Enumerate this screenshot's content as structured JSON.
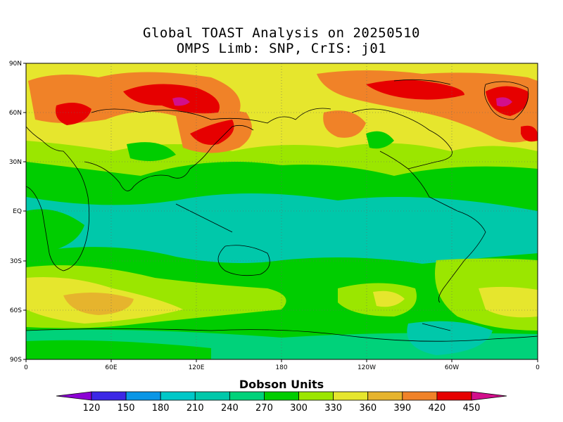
{
  "title_line1": "Global TOAST Analysis on 20250510",
  "title_line2": "OMPS Limb: SNP,  CrIS: j01",
  "lat_labels": [
    "90N",
    "60N",
    "30N",
    "EQ",
    "30S",
    "60S",
    "90S"
  ],
  "lon_labels": [
    "0",
    "60E",
    "120E",
    "180",
    "120W",
    "60W",
    "0"
  ],
  "colorbar": {
    "title": "Dobson Units",
    "tick_labels": [
      "120",
      "150",
      "180",
      "210",
      "240",
      "270",
      "300",
      "330",
      "360",
      "390",
      "420",
      "450"
    ],
    "colors": [
      "#8c00d4",
      "#3c28e6",
      "#0a96e6",
      "#00c8c8",
      "#00c8aa",
      "#00d27a",
      "#00cd00",
      "#9be600",
      "#e6e62d",
      "#e6b42d",
      "#f08228",
      "#e60000",
      "#d20f8c"
    ]
  }
}
